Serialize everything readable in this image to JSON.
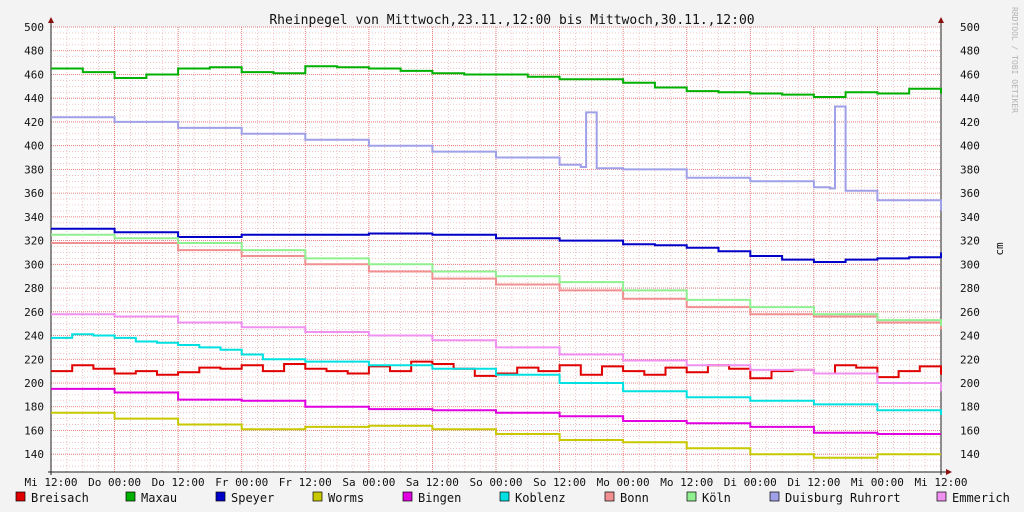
{
  "chart_data": {
    "type": "line",
    "title": "Rheinpegel von Mittwoch,23.11.,12:00 bis Mittwoch,30.11.,12:00",
    "ylabel": "cm",
    "xlabel": "",
    "watermark": "RRDTOOL / TOBI OETIKER",
    "ylim": [
      125,
      500
    ],
    "y_ticks": [
      140,
      160,
      180,
      200,
      220,
      240,
      260,
      280,
      300,
      320,
      340,
      360,
      380,
      400,
      420,
      440,
      460,
      480,
      500
    ],
    "x_ticks": [
      "Mi 12:00",
      "Do 00:00",
      "Do 12:00",
      "Fr 00:00",
      "Fr 12:00",
      "Sa 00:00",
      "Sa 12:00",
      "So 00:00",
      "So 12:00",
      "Mo 00:00",
      "Mo 12:00",
      "Di 00:00",
      "Di 12:00",
      "Mi 00:00",
      "Mi 12:00"
    ],
    "x_unit": "hours since Mi 12:00",
    "grid": true,
    "legend_position": "bottom",
    "colors": {
      "background": "#f3f3f3",
      "plot_background": "#ffffff",
      "minor_grid": "#e8a0a0",
      "major_grid": "#e06060",
      "axis": "#222222",
      "arrow": "#8a1010"
    },
    "series": [
      {
        "name": "Breisach",
        "color": "#e00000",
        "x": [
          0,
          4,
          8,
          12,
          16,
          20,
          24,
          28,
          32,
          36,
          40,
          44,
          48,
          52,
          56,
          60,
          64,
          68,
          72,
          76,
          80,
          84,
          88,
          92,
          96,
          100,
          104,
          108,
          112,
          116,
          120,
          124,
          128,
          132,
          136,
          140,
          144,
          148,
          152,
          156,
          160,
          164,
          168
        ],
        "y": [
          210,
          215,
          212,
          208,
          210,
          207,
          209,
          213,
          212,
          215,
          210,
          216,
          212,
          210,
          208,
          214,
          210,
          218,
          216,
          212,
          206,
          208,
          213,
          210,
          215,
          207,
          214,
          210,
          207,
          213,
          209,
          215,
          212,
          204,
          210,
          211,
          208,
          215,
          213,
          205,
          210,
          214,
          207
        ]
      },
      {
        "name": "Maxau",
        "color": "#00b000",
        "x": [
          0,
          6,
          12,
          18,
          24,
          30,
          36,
          42,
          48,
          54,
          60,
          66,
          72,
          78,
          84,
          90,
          96,
          102,
          108,
          114,
          120,
          126,
          132,
          138,
          144,
          150,
          156,
          162,
          168
        ],
        "y": [
          465,
          462,
          457,
          460,
          465,
          466,
          462,
          461,
          467,
          466,
          465,
          463,
          461,
          460,
          460,
          458,
          456,
          456,
          453,
          449,
          446,
          445,
          444,
          443,
          441,
          445,
          444,
          448,
          444
        ]
      },
      {
        "name": "Speyer",
        "color": "#0000c8",
        "x": [
          0,
          12,
          24,
          36,
          48,
          60,
          72,
          84,
          96,
          108,
          114,
          120,
          126,
          132,
          138,
          144,
          150,
          156,
          162,
          168
        ],
        "y": [
          330,
          327,
          323,
          325,
          325,
          326,
          325,
          322,
          320,
          317,
          316,
          314,
          311,
          307,
          304,
          302,
          304,
          305,
          306,
          310
        ]
      },
      {
        "name": "Worms",
        "color": "#c8c800",
        "x": [
          0,
          12,
          24,
          36,
          48,
          60,
          72,
          84,
          96,
          108,
          120,
          132,
          144,
          156,
          168
        ],
        "y": [
          175,
          170,
          165,
          161,
          163,
          164,
          161,
          157,
          152,
          150,
          145,
          140,
          137,
          140,
          140
        ]
      },
      {
        "name": "Bingen",
        "color": "#e000e0",
        "x": [
          0,
          12,
          24,
          36,
          48,
          60,
          72,
          84,
          96,
          108,
          120,
          132,
          144,
          156,
          168
        ],
        "y": [
          195,
          192,
          186,
          185,
          180,
          178,
          177,
          175,
          172,
          168,
          166,
          163,
          158,
          157,
          157
        ]
      },
      {
        "name": "Koblenz",
        "color": "#00e0e0",
        "x": [
          0,
          4,
          8,
          12,
          16,
          20,
          24,
          28,
          32,
          36,
          40,
          48,
          60,
          72,
          84,
          96,
          108,
          120,
          132,
          144,
          156,
          168
        ],
        "y": [
          238,
          241,
          240,
          238,
          235,
          234,
          232,
          230,
          228,
          224,
          220,
          218,
          215,
          212,
          207,
          200,
          193,
          188,
          185,
          182,
          177,
          173
        ]
      },
      {
        "name": "Bonn",
        "color": "#f09090",
        "x": [
          0,
          12,
          24,
          36,
          48,
          60,
          72,
          84,
          96,
          108,
          120,
          132,
          144,
          156,
          168
        ],
        "y": [
          318,
          318,
          312,
          307,
          300,
          294,
          288,
          283,
          278,
          271,
          264,
          258,
          256,
          251,
          245
        ]
      },
      {
        "name": "Köln",
        "color": "#90f090",
        "x": [
          0,
          12,
          24,
          36,
          48,
          60,
          72,
          84,
          96,
          108,
          120,
          132,
          144,
          156,
          168
        ],
        "y": [
          325,
          322,
          318,
          312,
          305,
          300,
          294,
          290,
          285,
          278,
          270,
          264,
          258,
          253,
          248
        ]
      },
      {
        "name": "Duisburg Ruhrort",
        "color": "#a0a0e8",
        "x": [
          0,
          12,
          24,
          36,
          48,
          60,
          72,
          84,
          96,
          100,
          101,
          102,
          103,
          108,
          120,
          132,
          144,
          147,
          148,
          149,
          150,
          156,
          168
        ],
        "y": [
          424,
          420,
          415,
          410,
          405,
          400,
          395,
          390,
          384,
          382,
          428,
          428,
          381,
          380,
          373,
          370,
          365,
          364,
          433,
          433,
          362,
          354,
          345
        ]
      },
      {
        "name": "Emmerich",
        "color": "#f090f0",
        "x": [
          0,
          12,
          24,
          36,
          48,
          60,
          72,
          84,
          96,
          108,
          120,
          132,
          144,
          156,
          168
        ],
        "y": [
          258,
          256,
          251,
          247,
          243,
          240,
          236,
          230,
          224,
          219,
          215,
          211,
          208,
          200,
          193
        ]
      }
    ]
  }
}
